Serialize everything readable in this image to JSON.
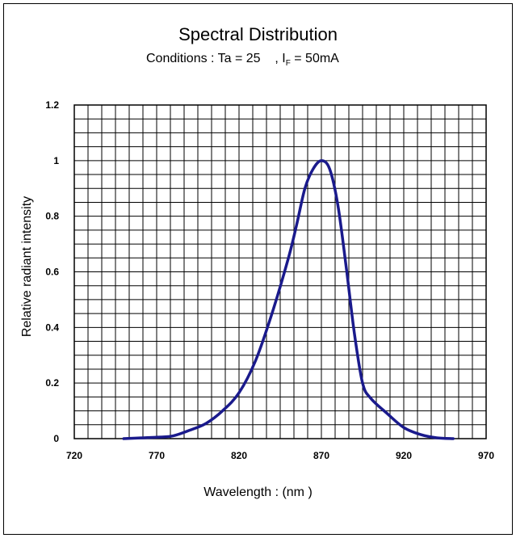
{
  "chart_data": {
    "type": "line",
    "title": "Spectral Distribution",
    "subtitle": {
      "prefix": "Conditions : Ta = 25",
      "suffix": ", I",
      "subscript": "F",
      "tail": " = 50mA"
    },
    "xlabel": "Wavelength : (nm )",
    "ylabel": "Relative radiant intensity",
    "xlim": [
      720,
      970
    ],
    "ylim": [
      0,
      1.2
    ],
    "x_ticks": [
      "720",
      "770",
      "820",
      "870",
      "920",
      "970"
    ],
    "y_ticks": [
      "0",
      "0.2",
      "0.4",
      "0.6",
      "0.8",
      "1",
      "1.2"
    ],
    "grid": true,
    "series": [
      {
        "color": "#1a1a8c",
        "x": [
          750,
          770,
          780,
          790,
          800,
          810,
          820,
          830,
          840,
          850,
          855,
          860,
          865,
          870,
          875,
          880,
          885,
          890,
          895,
          900,
          910,
          920,
          930,
          940,
          950
        ],
        "y": [
          0.0,
          0.005,
          0.01,
          0.03,
          0.055,
          0.1,
          0.165,
          0.28,
          0.45,
          0.65,
          0.77,
          0.9,
          0.97,
          1.0,
          0.97,
          0.84,
          0.62,
          0.38,
          0.2,
          0.145,
          0.09,
          0.04,
          0.015,
          0.003,
          0.0
        ]
      }
    ]
  }
}
